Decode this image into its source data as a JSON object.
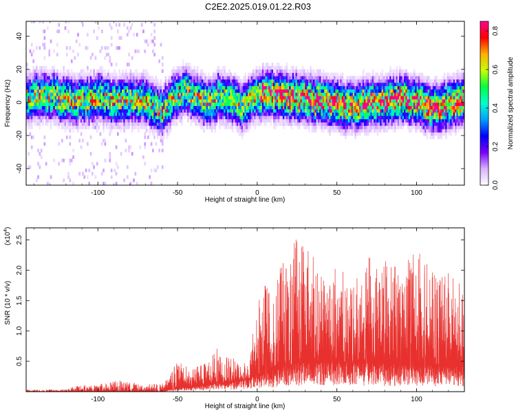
{
  "title": "C2E2.2025.019.01.22.R03",
  "colors": {
    "snr_line": "#e8312e",
    "colorbar_stops": [
      "#ffffff",
      "#d9b3ff",
      "#7a00ff",
      "#0000ff",
      "#00a0ff",
      "#00ffd0",
      "#00ff40",
      "#c8ff00",
      "#ffb000",
      "#ff0000",
      "#ff0090"
    ]
  },
  "chart_data": [
    {
      "type": "heatmap",
      "title": "C2E2.2025.019.01.22.R03",
      "xlabel": "Height of straight line (km)",
      "ylabel": "Frequency (Hz)",
      "xlim": [
        -145,
        130
      ],
      "ylim": [
        -50,
        49
      ],
      "x_ticks": [
        -100,
        -50,
        0,
        50,
        100
      ],
      "x_tick_labels": [
        "-100",
        "-50",
        "0",
        "50",
        "100"
      ],
      "y_ticks": [
        -40,
        -20,
        0,
        20,
        40
      ],
      "y_tick_labels": [
        "-40",
        "-20",
        "0",
        "20",
        "40"
      ],
      "colorbar": {
        "label": "Normalized spectral amplitude",
        "range": [
          0,
          0.85
        ],
        "ticks": [
          0.0,
          0.2,
          0.4,
          0.6,
          0.8
        ],
        "tick_labels": [
          "0.0",
          "0.2",
          "0.4",
          "0.6",
          "0.8"
        ]
      },
      "ridge_frequency": {
        "x": [
          -145,
          -130,
          -120,
          -110,
          -100,
          -90,
          -80,
          -70,
          -65,
          -60,
          -55,
          -50,
          -45,
          -40,
          -35,
          -30,
          -25,
          -20,
          -15,
          -10,
          -5,
          0,
          5,
          10,
          15,
          20,
          30,
          40,
          50,
          55,
          60,
          70,
          80,
          90,
          100,
          110,
          115,
          120,
          130
        ],
        "y": [
          2,
          3,
          1,
          0,
          2,
          0,
          1,
          0,
          -3,
          -6,
          0,
          5,
          6,
          3,
          0,
          -2,
          3,
          1,
          0,
          -4,
          1,
          3,
          5,
          4,
          3,
          2,
          1,
          0,
          -2,
          -4,
          -3,
          -1,
          0,
          1,
          -1,
          -4,
          -5,
          -2,
          1
        ]
      },
      "ridge_half_width_hz": 7,
      "peak_amplitude": 0.85,
      "scatter_range_x": [
        -145,
        -60
      ]
    },
    {
      "type": "line",
      "xlabel": "Height of straight line (km)",
      "ylabel": "SNR (10 * v/v)",
      "y_multiplier_label": "(x10",
      "y_multiplier_exponent": "4",
      "xlim": [
        -145,
        130
      ],
      "ylim": [
        0,
        27000
      ],
      "x_ticks": [
        -100,
        -50,
        0,
        50,
        100
      ],
      "x_tick_labels": [
        "-100",
        "-50",
        "0",
        "50",
        "100"
      ],
      "y_ticks": [
        5000,
        10000,
        15000,
        20000,
        25000
      ],
      "y_tick_labels": [
        "0.5",
        "1.0",
        "1.5",
        "2.0",
        "2.5"
      ],
      "series": [
        {
          "envelope_x": [
            -145,
            -120,
            -115,
            -100,
            -90,
            -85,
            -80,
            -70,
            -60,
            -55,
            -50,
            -40,
            -30,
            -25,
            -20,
            -15,
            -10,
            -5,
            0,
            5,
            10,
            15,
            20,
            25,
            30,
            40,
            50,
            60,
            70,
            80,
            90,
            100,
            110,
            120,
            130
          ],
          "envelope_max": [
            300,
            400,
            900,
            1400,
            1700,
            2200,
            1600,
            1200,
            1400,
            2500,
            5300,
            4000,
            5000,
            8000,
            6000,
            5500,
            4600,
            5000,
            16000,
            18000,
            17000,
            22000,
            20000,
            27000,
            24000,
            21000,
            20500,
            19000,
            23000,
            22000,
            20000,
            24000,
            20000,
            20000,
            18000
          ],
          "envelope_base": [
            0,
            0,
            0,
            0,
            0,
            0,
            0,
            0,
            0,
            300,
            600,
            800,
            1200,
            1500,
            1500,
            1600,
            2000,
            2200,
            2800,
            3200,
            3600,
            4000,
            4300,
            4600,
            4800,
            5000,
            5000,
            4800,
            4700,
            4600,
            4500,
            4400,
            4300,
            4200,
            4000
          ]
        }
      ]
    }
  ]
}
